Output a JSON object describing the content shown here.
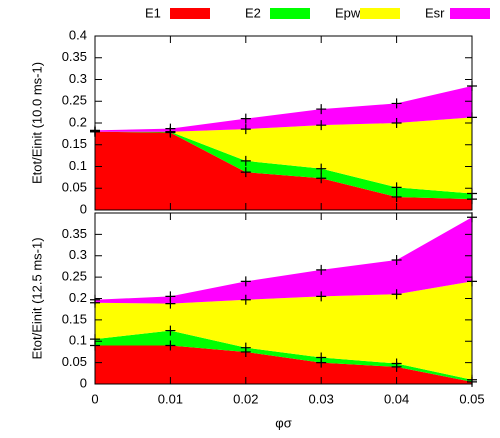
{
  "chart_data": [
    {
      "type": "stacked_area",
      "ylabel": "Etot/Einit (10.0 ms-1)",
      "x": [
        0,
        0.01,
        0.02,
        0.03,
        0.04,
        0.05
      ],
      "series": [
        {
          "name": "E1",
          "color": "#ff0000",
          "values": [
            0.18,
            0.178,
            0.087,
            0.073,
            0.03,
            0.025
          ]
        },
        {
          "name": "E2",
          "color": "#00ff00",
          "values": [
            0,
            0.002,
            0.026,
            0.022,
            0.022,
            0.013
          ]
        },
        {
          "name": "Epw",
          "color": "#ffff00",
          "values": [
            0,
            0,
            0.073,
            0.1,
            0.148,
            0.175
          ]
        },
        {
          "name": "Esr",
          "color": "#ff00ff",
          "values": [
            0.003,
            0.007,
            0.024,
            0.037,
            0.045,
            0.072
          ]
        }
      ],
      "ylim": [
        0,
        0.4
      ],
      "yticks": [
        0,
        0.05,
        0.1,
        0.15,
        0.2,
        0.25,
        0.3,
        0.35,
        0.4
      ]
    },
    {
      "type": "stacked_area",
      "ylabel": "Etot/Einit (12.5 ms-1)",
      "xlabel": "φσ",
      "x": [
        0,
        0.01,
        0.02,
        0.03,
        0.04,
        0.05
      ],
      "series": [
        {
          "name": "E1",
          "color": "#ff0000",
          "values": [
            0.09,
            0.09,
            0.075,
            0.05,
            0.04,
            0.005
          ]
        },
        {
          "name": "E2",
          "color": "#00ff00",
          "values": [
            0.015,
            0.035,
            0.01,
            0.012,
            0.008,
            0.005
          ]
        },
        {
          "name": "Epw",
          "color": "#ffff00",
          "values": [
            0.085,
            0.063,
            0.112,
            0.143,
            0.162,
            0.23
          ]
        },
        {
          "name": "Esr",
          "color": "#ff00ff",
          "values": [
            0.007,
            0.017,
            0.043,
            0.062,
            0.08,
            0.15
          ]
        }
      ],
      "xlim": [
        0,
        0.05
      ],
      "xticks": [
        0,
        0.01,
        0.02,
        0.03,
        0.04,
        0.05
      ],
      "ylim": [
        0,
        0.4
      ],
      "yticks": [
        0,
        0.05,
        0.1,
        0.15,
        0.2,
        0.25,
        0.3,
        0.35
      ]
    }
  ]
}
